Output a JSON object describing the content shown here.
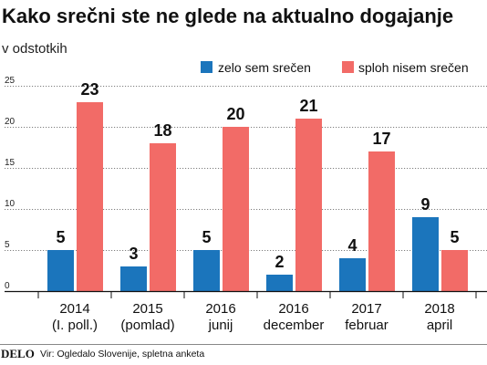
{
  "chart_data": {
    "type": "bar",
    "title": "Kako srečni ste ne glede na aktualno dogajanje",
    "subtitle": "v odstotkih",
    "categories": [
      [
        "2014",
        "(I. poll.)"
      ],
      [
        "2015",
        "(pomlad)"
      ],
      [
        "2016",
        "junij"
      ],
      [
        "2016",
        "december"
      ],
      [
        "2017",
        "februar"
      ],
      [
        "2018",
        "april"
      ]
    ],
    "series": [
      {
        "name": "zelo sem srečen",
        "color": "#1b75bc",
        "values": [
          5,
          3,
          5,
          2,
          4,
          9
        ]
      },
      {
        "name": "sploh nisem srečen",
        "color": "#f26b67",
        "values": [
          23,
          18,
          20,
          21,
          17,
          5
        ]
      }
    ],
    "ylim": [
      0,
      25
    ],
    "yticks": [
      0,
      5,
      10,
      15,
      20,
      25
    ],
    "grid": true,
    "legend": "top-right"
  },
  "footer": {
    "logo": "DELO",
    "source": "Vir: Ogledalo Slovenije, spletna anketa"
  }
}
